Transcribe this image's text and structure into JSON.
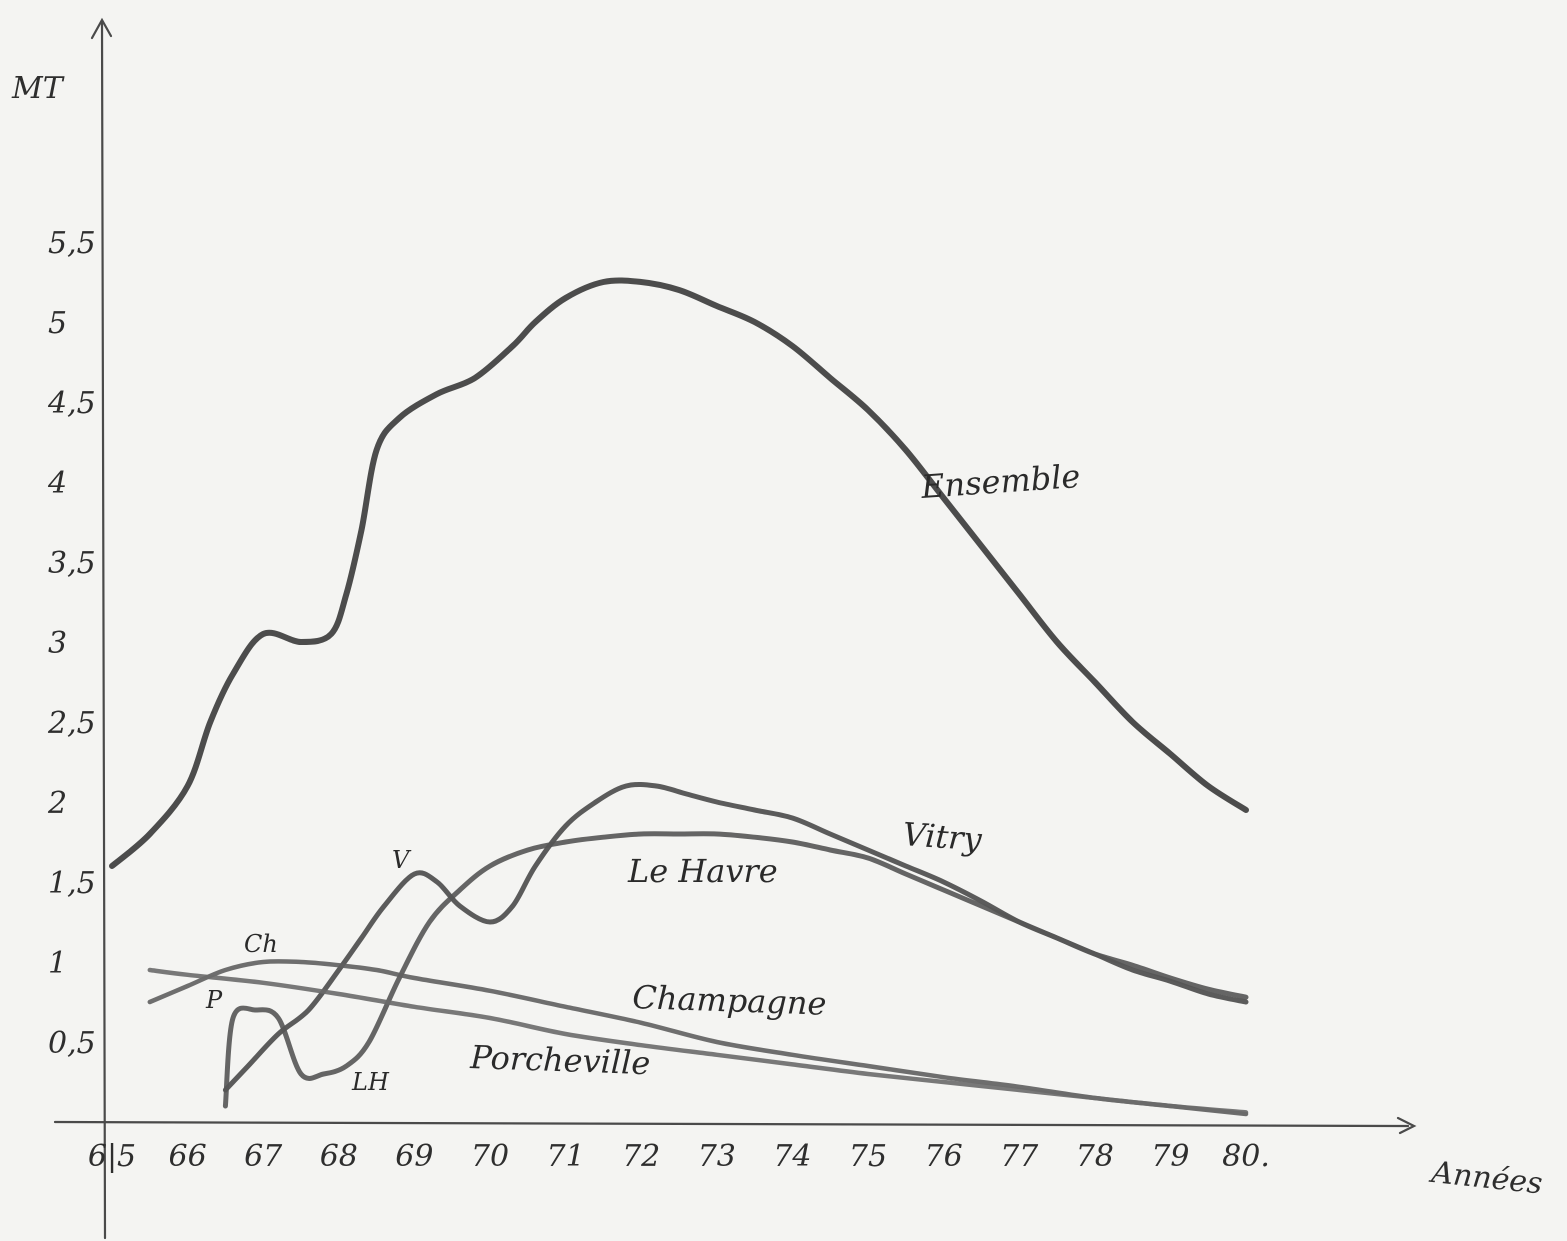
{
  "chart_data": {
    "type": "line",
    "ylabel": "MT",
    "xlabel": "Années",
    "x_ticks": [
      "6|5",
      "66",
      "67",
      "68",
      "69",
      "70",
      "71",
      "72",
      "73",
      "74",
      "75",
      "76",
      "77",
      "78",
      "79",
      "80."
    ],
    "y_ticks": [
      {
        "value": 0.5,
        "label": "0,5"
      },
      {
        "value": 1,
        "label": "1"
      },
      {
        "value": 1.5,
        "label": "1,5"
      },
      {
        "value": 2,
        "label": "2"
      },
      {
        "value": 2.5,
        "label": "2,5"
      },
      {
        "value": 3,
        "label": "3"
      },
      {
        "value": 3.5,
        "label": "3,5"
      },
      {
        "value": 4,
        "label": "4"
      },
      {
        "value": 4.5,
        "label": "4,5"
      },
      {
        "value": 5,
        "label": "5"
      },
      {
        "value": 5.5,
        "label": "5,5"
      }
    ],
    "xlim": [
      65,
      83
    ],
    "ylim": [
      0,
      6.5
    ],
    "grid": false,
    "series": [
      {
        "name": "Ensemble",
        "short_label": "",
        "color": "#3a3a3a",
        "x": [
          65,
          65.5,
          66,
          66.3,
          66.6,
          67,
          67.5,
          67.9,
          68.1,
          68.3,
          68.5,
          68.8,
          69.3,
          69.8,
          70.3,
          70.6,
          71,
          71.5,
          72,
          72.5,
          73,
          73.5,
          74,
          74.5,
          75,
          75.5,
          76,
          76.5,
          77,
          77.5,
          78,
          78.5,
          79,
          79.5,
          80
        ],
        "y": [
          1.6,
          1.8,
          2.1,
          2.5,
          2.8,
          3.05,
          3.0,
          3.05,
          3.3,
          3.7,
          4.2,
          4.4,
          4.55,
          4.65,
          4.85,
          5.0,
          5.15,
          5.25,
          5.25,
          5.2,
          5.1,
          5.0,
          4.85,
          4.65,
          4.45,
          4.2,
          3.9,
          3.6,
          3.3,
          3.0,
          2.75,
          2.5,
          2.3,
          2.1,
          1.95
        ]
      },
      {
        "name": "Vitry",
        "short_label": "V",
        "color": "#4a4a4a",
        "x": [
          66.5,
          66.8,
          67.2,
          67.6,
          68,
          68.3,
          68.6,
          69,
          69.3,
          69.6,
          70,
          70.3,
          70.6,
          71,
          71.4,
          71.8,
          72.2,
          72.6,
          73,
          73.5,
          74,
          74.5,
          75,
          75.5,
          76,
          76.5,
          77,
          77.5,
          78,
          78.5,
          79,
          79.5,
          80
        ],
        "y": [
          0.2,
          0.35,
          0.55,
          0.7,
          0.95,
          1.15,
          1.35,
          1.55,
          1.5,
          1.35,
          1.25,
          1.35,
          1.6,
          1.85,
          2.0,
          2.1,
          2.1,
          2.05,
          2.0,
          1.95,
          1.9,
          1.8,
          1.7,
          1.6,
          1.5,
          1.38,
          1.25,
          1.15,
          1.05,
          0.95,
          0.88,
          0.8,
          0.75
        ]
      },
      {
        "name": "Le Havre",
        "short_label": "LH",
        "color": "#555555",
        "x": [
          66.5,
          66.6,
          66.9,
          67.2,
          67.5,
          67.8,
          68.1,
          68.4,
          68.8,
          69.2,
          69.6,
          70,
          70.5,
          71,
          71.5,
          72,
          72.5,
          73,
          73.5,
          74,
          74.5,
          75,
          75.5,
          76,
          76.5,
          77,
          77.5,
          78,
          78.5,
          79,
          79.5,
          80
        ],
        "y": [
          0.1,
          0.65,
          0.7,
          0.65,
          0.3,
          0.3,
          0.35,
          0.5,
          0.9,
          1.25,
          1.45,
          1.6,
          1.7,
          1.75,
          1.78,
          1.8,
          1.8,
          1.8,
          1.78,
          1.75,
          1.7,
          1.65,
          1.55,
          1.45,
          1.35,
          1.25,
          1.15,
          1.05,
          0.98,
          0.9,
          0.83,
          0.78
        ]
      },
      {
        "name": "Champagne",
        "short_label": "Ch",
        "color": "#5f5f5f",
        "x": [
          65.5,
          66,
          66.5,
          67,
          67.5,
          68,
          68.5,
          69,
          70,
          71,
          72,
          73,
          74,
          75,
          76,
          77,
          78,
          79,
          80
        ],
        "y": [
          0.75,
          0.85,
          0.95,
          1.0,
          1.0,
          0.98,
          0.95,
          0.9,
          0.82,
          0.72,
          0.62,
          0.5,
          0.42,
          0.35,
          0.28,
          0.22,
          0.15,
          0.1,
          0.05
        ]
      },
      {
        "name": "Porcheville",
        "short_label": "P",
        "color": "#6a6a6a",
        "x": [
          65.5,
          66,
          67,
          68,
          69,
          70,
          71,
          72,
          73,
          74,
          75,
          76,
          77,
          78,
          79,
          80
        ],
        "y": [
          0.95,
          0.92,
          0.87,
          0.8,
          0.72,
          0.65,
          0.55,
          0.48,
          0.42,
          0.36,
          0.3,
          0.25,
          0.2,
          0.15,
          0.1,
          0.06
        ]
      }
    ]
  }
}
